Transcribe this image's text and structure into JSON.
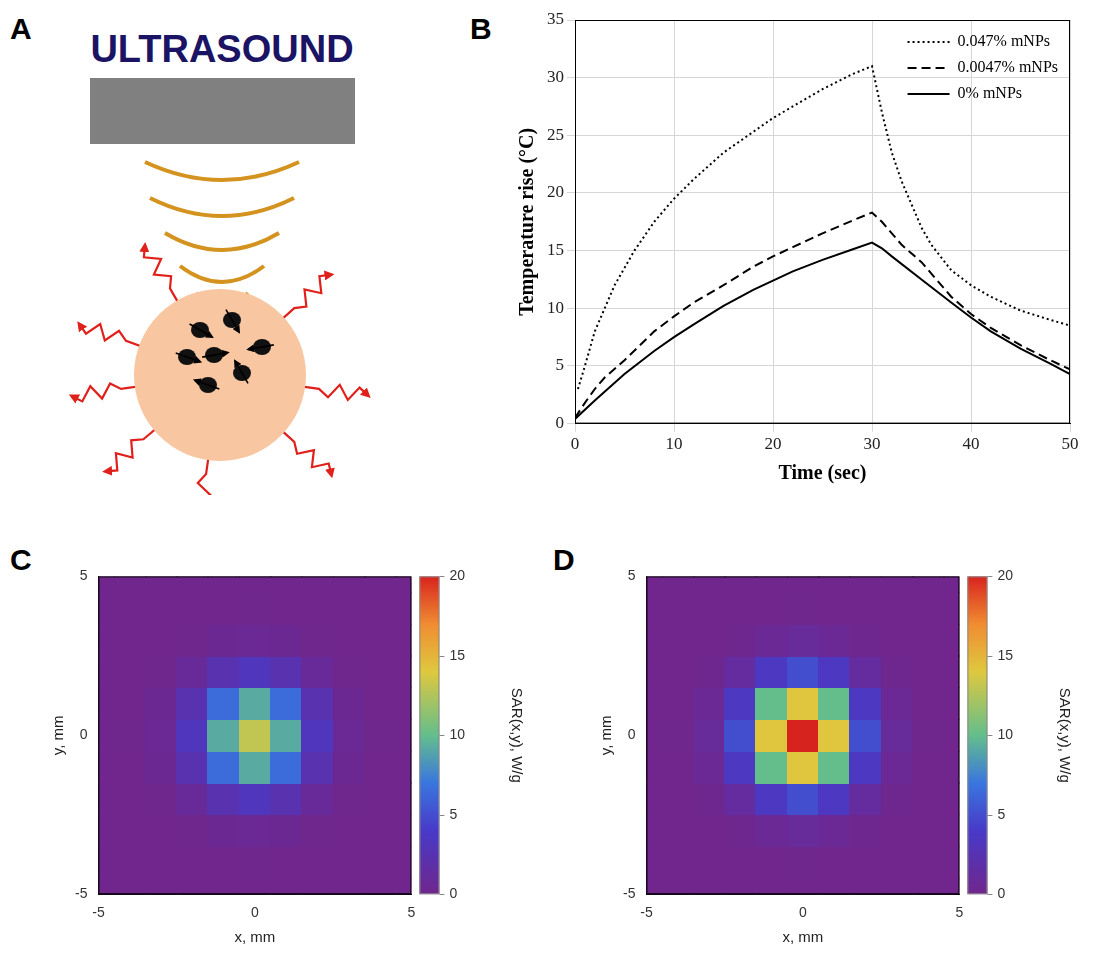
{
  "diagram": {
    "panel": "A",
    "title": "ULTRASOUND"
  },
  "chart_data": [
    {
      "panel": "B",
      "type": "line",
      "xlabel": "Time (sec)",
      "ylabel": "Temperature rise (°C)",
      "xlim": [
        0,
        50
      ],
      "xticks": [
        0,
        10,
        20,
        30,
        40,
        50
      ],
      "ylim": [
        0,
        35
      ],
      "yticks": [
        0,
        5,
        10,
        15,
        20,
        25,
        30,
        35
      ],
      "grid": true,
      "legend": "upper right",
      "series": [
        {
          "name": "0.047% mNPs",
          "color": "#000000",
          "line_style": "dotted",
          "x": [
            0.3,
            1,
            2,
            3,
            4,
            5,
            6,
            8,
            10,
            12,
            15,
            18,
            20,
            22,
            25,
            28,
            30,
            31,
            32,
            33,
            34,
            35,
            36,
            38,
            40,
            42,
            45,
            48,
            50
          ],
          "values": [
            3,
            5,
            8,
            10,
            12,
            13.5,
            15,
            17.5,
            19.5,
            21.2,
            23.5,
            25.3,
            26.5,
            27.5,
            29,
            30.3,
            31,
            27,
            23.5,
            21,
            19,
            17,
            15.5,
            13.3,
            12,
            11,
            9.8,
            9,
            8.5
          ]
        },
        {
          "name": "0.0047% mNPs",
          "color": "#000000",
          "line_style": "dashed",
          "x": [
            0,
            1,
            2,
            3,
            5,
            8,
            10,
            12,
            15,
            18,
            20,
            22,
            25,
            28,
            30,
            31,
            32,
            33,
            35,
            38,
            40,
            42,
            45,
            48,
            50
          ],
          "values": [
            0.5,
            1.8,
            3,
            4,
            5.5,
            8,
            9.3,
            10.5,
            12,
            13.6,
            14.5,
            15.3,
            16.5,
            17.6,
            18.3,
            17.5,
            16.5,
            15.5,
            14,
            11,
            9.5,
            8.3,
            6.8,
            5.5,
            4.7
          ]
        },
        {
          "name": "0% mNPs",
          "color": "#000000",
          "line_style": "solid",
          "x": [
            0,
            2,
            5,
            8,
            10,
            12,
            15,
            18,
            20,
            22,
            25,
            28,
            30,
            31,
            32,
            35,
            38,
            40,
            42,
            45,
            48,
            50
          ],
          "values": [
            0.4,
            2,
            4.3,
            6.3,
            7.5,
            8.6,
            10.2,
            11.6,
            12.4,
            13.2,
            14.2,
            15.1,
            15.7,
            15.2,
            14.5,
            12.5,
            10.5,
            9.2,
            8,
            6.5,
            5.2,
            4.3
          ]
        }
      ]
    },
    {
      "panel": "C",
      "type": "heatmap",
      "xlabel": "x, mm",
      "ylabel": "y, mm",
      "xlim": [
        -5,
        5
      ],
      "xticks": [
        -5,
        0,
        5
      ],
      "ylim": [
        -5,
        5
      ],
      "yticks": [
        -5,
        0,
        5
      ],
      "x": [
        -5,
        -4,
        -3,
        -2,
        -1,
        0,
        1,
        2,
        3,
        4,
        5
      ],
      "y": [
        -5,
        -4,
        -3,
        -2,
        -1,
        0,
        1,
        2,
        3,
        4,
        5
      ],
      "cells": [
        [
          0,
          0,
          0,
          0,
          0,
          0,
          0,
          0,
          0,
          0,
          0
        ],
        [
          0,
          0,
          0,
          0,
          0,
          0.1,
          0,
          0,
          0,
          0,
          0
        ],
        [
          0,
          0,
          0,
          0.1,
          0.4,
          0.6,
          0.4,
          0.1,
          0,
          0,
          0
        ],
        [
          0,
          0,
          0.1,
          0.8,
          2.3,
          3.2,
          2.3,
          0.8,
          0.1,
          0,
          0
        ],
        [
          0,
          0,
          0.4,
          2.3,
          6.5,
          9.2,
          6.5,
          2.3,
          0.4,
          0,
          0
        ],
        [
          0,
          0.1,
          0.6,
          3.2,
          9.2,
          13,
          9.2,
          3.2,
          0.6,
          0.1,
          0
        ],
        [
          0,
          0,
          0.4,
          2.3,
          6.5,
          9.2,
          6.5,
          2.3,
          0.4,
          0,
          0
        ],
        [
          0,
          0,
          0.1,
          0.8,
          2.3,
          3.2,
          2.3,
          0.8,
          0.1,
          0,
          0
        ],
        [
          0,
          0,
          0,
          0.1,
          0.4,
          0.6,
          0.4,
          0.1,
          0,
          0,
          0
        ],
        [
          0,
          0,
          0,
          0,
          0,
          0.1,
          0,
          0,
          0,
          0,
          0
        ],
        [
          0,
          0,
          0,
          0,
          0,
          0,
          0,
          0,
          0,
          0,
          0
        ]
      ],
      "colorbar": {
        "label": "SAR(x,y), W/g",
        "range": [
          0,
          20
        ],
        "ticks": [
          0,
          5,
          10,
          15,
          20
        ]
      }
    },
    {
      "panel": "D",
      "type": "heatmap",
      "xlabel": "x, mm",
      "ylabel": "y, mm",
      "xlim": [
        -5,
        5
      ],
      "xticks": [
        -5,
        0,
        5
      ],
      "ylim": [
        -5,
        5
      ],
      "yticks": [
        -5,
        0,
        5
      ],
      "x": [
        -5,
        -4,
        -3,
        -2,
        -1,
        0,
        1,
        2,
        3,
        4,
        5
      ],
      "y": [
        -5,
        -4,
        -3,
        -2,
        -1,
        0,
        1,
        2,
        3,
        4,
        5
      ],
      "cells": [
        [
          0,
          0,
          0,
          0,
          0,
          0,
          0,
          0,
          0,
          0,
          0
        ],
        [
          0,
          0,
          0,
          0,
          0,
          0.1,
          0,
          0,
          0,
          0,
          0
        ],
        [
          0,
          0,
          0,
          0.2,
          0.6,
          0.9,
          0.6,
          0.2,
          0,
          0,
          0
        ],
        [
          0,
          0,
          0.2,
          1.2,
          3.5,
          5,
          3.5,
          1.2,
          0.2,
          0,
          0
        ],
        [
          0,
          0,
          0.6,
          3.5,
          10,
          14.1,
          10,
          3.5,
          0.6,
          0,
          0
        ],
        [
          0,
          0.1,
          0.9,
          5,
          14.1,
          20,
          14.1,
          5,
          0.9,
          0.1,
          0
        ],
        [
          0,
          0,
          0.6,
          3.5,
          10,
          14.1,
          10,
          3.5,
          0.6,
          0,
          0
        ],
        [
          0,
          0,
          0.2,
          1.2,
          3.5,
          5,
          3.5,
          1.2,
          0.2,
          0,
          0
        ],
        [
          0,
          0,
          0,
          0.2,
          0.6,
          0.9,
          0.6,
          0.2,
          0,
          0,
          0
        ],
        [
          0,
          0,
          0,
          0,
          0,
          0.1,
          0,
          0,
          0,
          0,
          0
        ],
        [
          0,
          0,
          0,
          0,
          0,
          0,
          0,
          0,
          0,
          0,
          0
        ]
      ],
      "colorbar": {
        "label": "SAR(x,y), W/g",
        "range": [
          0,
          20
        ],
        "ticks": [
          0,
          5,
          10,
          15,
          20
        ]
      }
    }
  ]
}
